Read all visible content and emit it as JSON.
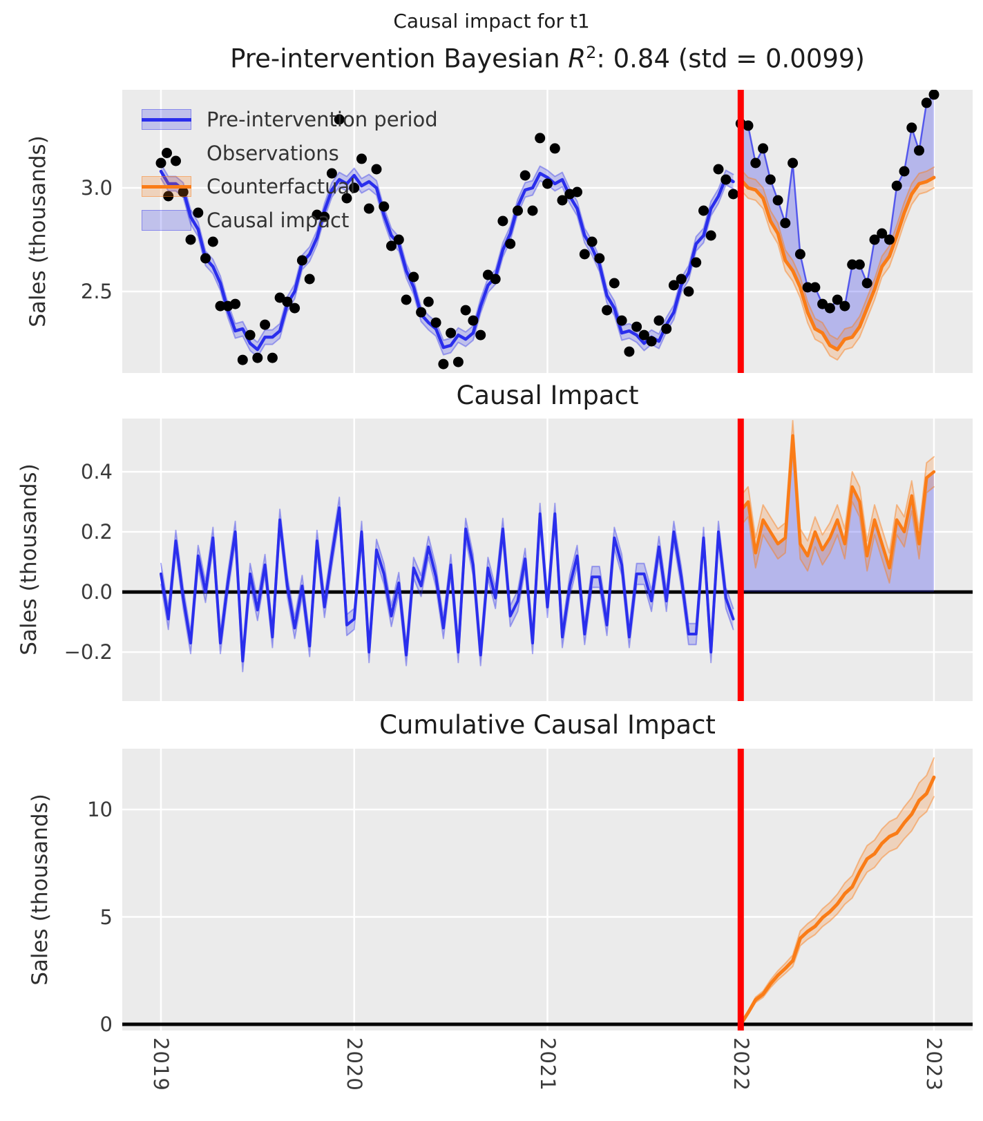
{
  "figure": {
    "suptitle": "Causal impact for t1",
    "panel1_title": {
      "prefix": "Pre-intervention Bayesian ",
      "r": "R",
      "sup": "2",
      "suffix": ": 0.84 (std = 0.0099)"
    },
    "panel2_title": "Causal Impact",
    "panel3_title": "Cumulative Causal Impact",
    "ylabel": "Sales (thousands)"
  },
  "legend": {
    "items": [
      {
        "label": "Pre-intervention period",
        "swatch": "blue-band-with-line"
      },
      {
        "label": "Observations",
        "swatch": "black-dot"
      },
      {
        "label": "Counterfactual",
        "swatch": "orange-band-with-line"
      },
      {
        "label": "Causal impact",
        "swatch": "blue-filled-rect"
      }
    ]
  },
  "axes": {
    "x_ticklabels": [
      "2019",
      "2020",
      "2021",
      "2022",
      "2023"
    ],
    "panel1_yticklabels": [
      "3.0",
      "2.5"
    ],
    "panel2_yticklabels": [
      "0.4",
      "0.2",
      "0.0",
      "−0.2"
    ],
    "panel3_yticklabels": [
      "10",
      "5",
      "0"
    ]
  },
  "colors": {
    "pre_line": "#2a2eec",
    "counterfactual_line": "#fa7c17",
    "observation": "#000000",
    "intervention_line": "#ff0000",
    "blue_band": "rgba(42,46,236,0.22)",
    "blue_band_edge": "rgba(42,46,236,0.38)",
    "impact_fill": "rgba(42,46,236,0.28)",
    "orange_band": "rgba(250,124,23,0.22)",
    "orange_band_edge": "rgba(250,124,23,0.45)",
    "background": "#ebebeb",
    "grid": "#ffffff",
    "zero_line": "#000000"
  },
  "chart_data": {
    "type": "line",
    "suptitle": "Causal impact for t1",
    "panel_titles": [
      "Pre-intervention Bayesian R^2: 0.84 (std = 0.0099)",
      "Causal Impact",
      "Cumulative Causal Impact"
    ],
    "ylabel": "Sales (thousands)",
    "x_unit": "decimal_year",
    "x_start": 2019.0,
    "x_step": 0.0384615,
    "n_pre": 78,
    "n_post": 27,
    "intervention_x": 2022.0,
    "year_ticks": [
      2019,
      2020,
      2021,
      2022,
      2023
    ],
    "xlim": [
      2018.8,
      2023.2
    ],
    "grid": true,
    "legend_position": "upper-left",
    "panel1": {
      "name": "pre-intervention fit, observations, counterfactual and causal impact",
      "ylim": [
        2.107,
        3.473
      ],
      "gridlines_y": [
        3.0,
        2.5
      ],
      "observations_pre": [
        3.12,
        2.96,
        3.13,
        2.98,
        2.75,
        2.88,
        2.66,
        2.74,
        2.43,
        2.43,
        2.44,
        2.17,
        2.29,
        2.18,
        2.34,
        2.18,
        2.47,
        2.45,
        2.42,
        2.65,
        2.56,
        2.87,
        2.86,
        3.07,
        3.33,
        2.95,
        3.0,
        3.14,
        2.9,
        3.09,
        2.91,
        2.72,
        2.75,
        2.46,
        2.57,
        2.4,
        2.45,
        2.35,
        2.15,
        2.3,
        2.16,
        2.41,
        2.36,
        2.29,
        2.58,
        2.56,
        2.84,
        2.73,
        2.89,
        3.06,
        2.89,
        3.24,
        3.02,
        3.19,
        2.94,
        2.97,
        2.98,
        2.68,
        2.74,
        2.66,
        2.41,
        2.54,
        2.36,
        2.21,
        2.33,
        2.29,
        2.26,
        2.36,
        2.32,
        2.53,
        2.56,
        2.5,
        2.64,
        2.89,
        2.77,
        3.09,
        3.04,
        2.97
      ],
      "model_mean_pre": [
        3.08,
        3.02,
        3.02,
        2.99,
        2.86,
        2.8,
        2.66,
        2.62,
        2.54,
        2.41,
        2.31,
        2.32,
        2.25,
        2.22,
        2.28,
        2.28,
        2.31,
        2.44,
        2.5,
        2.64,
        2.68,
        2.76,
        2.89,
        2.99,
        3.04,
        3.02,
        3.06,
        3.01,
        3.03,
        3.0,
        2.87,
        2.77,
        2.73,
        2.6,
        2.52,
        2.39,
        2.35,
        2.32,
        2.23,
        2.24,
        2.29,
        2.27,
        2.3,
        2.43,
        2.53,
        2.57,
        2.7,
        2.78,
        2.91,
        2.99,
        3.0,
        3.07,
        3.05,
        3.02,
        3.04,
        2.96,
        2.9,
        2.77,
        2.71,
        2.63,
        2.48,
        2.42,
        2.3,
        2.31,
        2.29,
        2.25,
        2.28,
        2.26,
        2.34,
        2.4,
        2.53,
        2.59,
        2.73,
        2.77,
        2.9,
        2.96,
        3.05,
        3.03
      ],
      "mu_band_halfwidth": 0.035,
      "observations_post": [
        3.31,
        3.3,
        3.12,
        3.19,
        3.04,
        2.94,
        2.83,
        3.12,
        2.68,
        2.52,
        2.52,
        2.44,
        2.42,
        2.46,
        2.43,
        2.63,
        2.63,
        2.54,
        2.75,
        2.78,
        2.75,
        3.01,
        3.08,
        3.29,
        3.18,
        3.41,
        3.45
      ],
      "counterfactual": [
        3.04,
        3.0,
        2.99,
        2.95,
        2.84,
        2.78,
        2.65,
        2.6,
        2.52,
        2.4,
        2.32,
        2.3,
        2.24,
        2.22,
        2.27,
        2.28,
        2.33,
        2.42,
        2.51,
        2.62,
        2.67,
        2.77,
        2.88,
        2.97,
        3.02,
        3.03,
        3.05
      ],
      "cf_band_halfwidth": 0.05
    },
    "panel2": {
      "name": "causal impact (observed minus counterfactual)",
      "ylim": [
        -0.363,
        0.577
      ],
      "gridlines_y": [
        0.4,
        0.2,
        0.0,
        -0.2
      ],
      "impact_pre": [
        0.06,
        -0.09,
        0.17,
        -0.02,
        -0.17,
        0.12,
        0.0,
        0.18,
        -0.17,
        0.03,
        0.2,
        -0.23,
        0.06,
        -0.06,
        0.09,
        -0.15,
        0.24,
        0.02,
        -0.12,
        0.02,
        -0.18,
        0.17,
        -0.05,
        0.12,
        0.28,
        -0.11,
        -0.09,
        0.2,
        -0.2,
        0.14,
        0.06,
        -0.08,
        0.03,
        -0.21,
        0.08,
        0.02,
        0.15,
        0.05,
        -0.12,
        0.09,
        -0.2,
        0.21,
        0.09,
        -0.21,
        0.08,
        -0.02,
        0.21,
        -0.08,
        -0.03,
        0.11,
        -0.17,
        0.26,
        -0.05,
        0.26,
        -0.15,
        0.02,
        0.12,
        -0.14,
        0.05,
        0.05,
        -0.11,
        0.18,
        0.09,
        -0.15,
        0.06,
        0.06,
        -0.03,
        0.15,
        -0.03,
        0.2,
        0.05,
        -0.14,
        -0.14,
        0.18,
        -0.2,
        0.2,
        -0.02,
        -0.09
      ],
      "impact_post": [
        0.27,
        0.3,
        0.13,
        0.24,
        0.2,
        0.16,
        0.18,
        0.52,
        0.16,
        0.12,
        0.2,
        0.14,
        0.18,
        0.24,
        0.16,
        0.35,
        0.3,
        0.12,
        0.24,
        0.16,
        0.08,
        0.24,
        0.2,
        0.32,
        0.16,
        0.38,
        0.4
      ],
      "band_halfwidth_pre": 0.035,
      "band_halfwidth_post": 0.05
    },
    "panel3": {
      "name": "cumulative causal impact",
      "ylim": [
        -0.29,
        12.83
      ],
      "gridlines_y": [
        10,
        5
      ],
      "cumulative_post": [
        0.0,
        0.54,
        1.14,
        1.4,
        1.88,
        2.28,
        2.6,
        2.96,
        4.0,
        4.32,
        4.56,
        4.96,
        5.24,
        5.6,
        6.08,
        6.4,
        7.1,
        7.7,
        7.94,
        8.42,
        8.74,
        8.9,
        9.38,
        9.78,
        10.42,
        10.74,
        11.5
      ],
      "band_halfwidth_factor": 0.075
    }
  }
}
